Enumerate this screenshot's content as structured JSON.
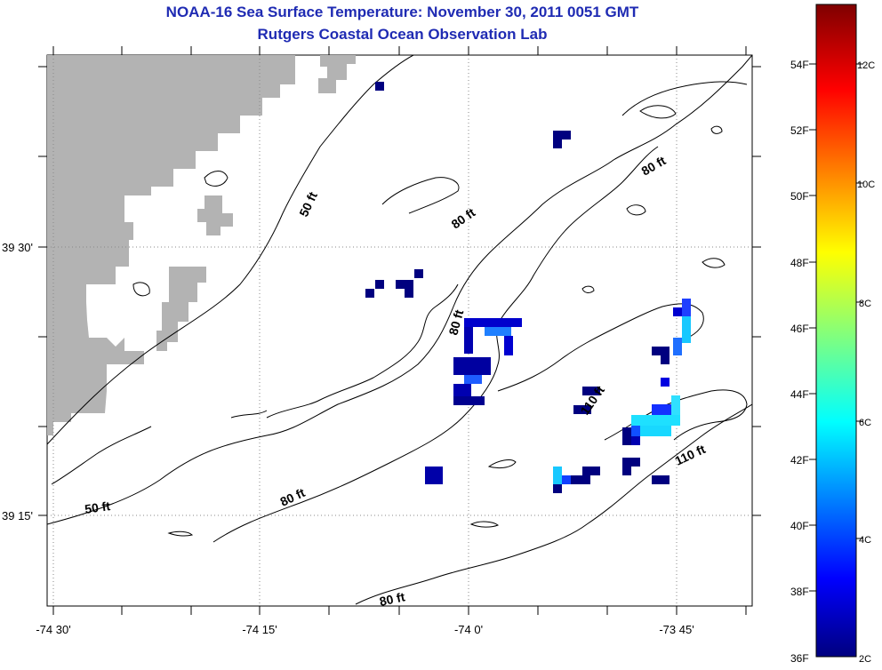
{
  "header": {
    "title": "NOAA-16 Sea Surface Temperature:  November 30, 2011 0051 GMT",
    "subtitle": "Rutgers Coastal Ocean Observation Lab"
  },
  "map": {
    "lon_labels": [
      "-74 30'",
      "-74 15'",
      "-74 0'",
      "-73 45'"
    ],
    "lat_labels": [
      "39 30'",
      "39 15'"
    ],
    "contour_labels": [
      "50 ft",
      "80 ft",
      "80 ft",
      "80 ft",
      "110 ft",
      "50 ft",
      "80 ft",
      "80 ft",
      "110 ft"
    ],
    "colors": {
      "land": "#b3b3b3",
      "contour": "#000000",
      "grid": "#888888"
    }
  },
  "colorbar": {
    "f_labels": [
      "54F",
      "52F",
      "50F",
      "48F",
      "46F",
      "44F",
      "42F",
      "40F",
      "38F",
      "36F"
    ],
    "c_labels": [
      "12C",
      "10C",
      "8C",
      "6C",
      "4C",
      "2C"
    ],
    "colormap": "jet"
  }
}
